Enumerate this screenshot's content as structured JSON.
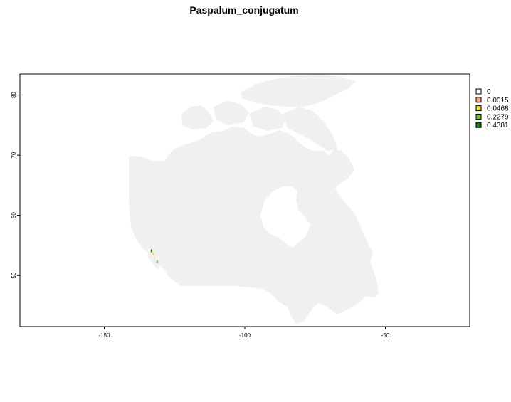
{
  "title": "Paspalum_conjugatum",
  "map": {
    "xlim": [
      -180,
      -20
    ],
    "ylim": [
      41.5,
      83.5
    ],
    "x_ticks": [
      {
        "value": -150,
        "label": "-150"
      },
      {
        "value": -100,
        "label": "-100"
      },
      {
        "value": -50,
        "label": "-50"
      }
    ],
    "y_ticks": [
      {
        "value": 50,
        "label": "50"
      },
      {
        "value": 60,
        "label": "60"
      },
      {
        "value": 70,
        "label": "70"
      },
      {
        "value": 80,
        "label": "80"
      }
    ],
    "land_color": "#f0f0f0",
    "frame_color": "#000000"
  },
  "legend": {
    "placement": "right",
    "items": [
      {
        "label": "0",
        "color": "#ffffff"
      },
      {
        "label": "0.0015",
        "color": "#f4a582"
      },
      {
        "label": "0.0468",
        "color": "#f0e442"
      },
      {
        "label": "0.2279",
        "color": "#7fbf3f"
      },
      {
        "label": "0.4381",
        "color": "#1a7a1a"
      }
    ]
  },
  "occurrences": [
    {
      "lon": -133.2,
      "lat": 54.1,
      "color": "#1a7a1a"
    },
    {
      "lon": -132.6,
      "lat": 53.6,
      "color": "#f0e442"
    },
    {
      "lon": -131.2,
      "lat": 52.3,
      "color": "#7fbf3f"
    }
  ]
}
